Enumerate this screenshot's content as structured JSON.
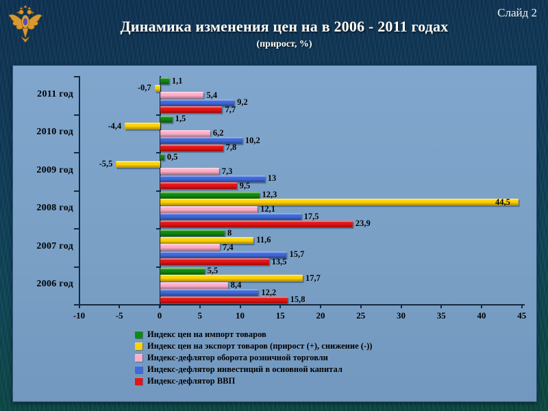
{
  "slide": {
    "slide_number_label": "Слайд 2",
    "title": "Динамика изменения цен на в 2006 - 2011 годах",
    "subtitle": "(прирост, %)",
    "logo_icon": "double-headed-eagle-emblem"
  },
  "colors": {
    "title_text": "#fffdf5",
    "panel_background": "#7aa0c6",
    "axis_line": "#14283e",
    "value_label_text": "#000000",
    "emblem_gold": "#d8992e",
    "emblem_shield": "#5b4fa8"
  },
  "chart_data": {
    "type": "bar",
    "orientation": "horizontal",
    "title": "Динамика изменения цен на в 2006 - 2011 годах (прирост, %)",
    "categories": [
      "2011 год",
      "2010 год",
      "2009 год",
      "2008 год",
      "2007 год",
      "2006 год"
    ],
    "series": [
      {
        "name": "Индекс цен на импорт товаров",
        "color": "#118a11",
        "values": [
          1.1,
          1.5,
          0.5,
          12.3,
          8,
          5.5
        ],
        "labels": [
          "1,1",
          "1,5",
          "0,5",
          "12,3",
          "8",
          "5,5"
        ]
      },
      {
        "name": "Индекс цен на экспорт товаров (прирост (+), снижение (-))",
        "color": "#ffd200",
        "values": [
          -0.7,
          -4.4,
          -5.5,
          44.5,
          11.6,
          17.7
        ],
        "labels": [
          "-0,7",
          "-4,4",
          "-5,5",
          "44,5",
          "11,6",
          "17,7"
        ]
      },
      {
        "name": "Индекс-дефлятор оборота розничной торговли",
        "color": "#ffaec9",
        "values": [
          5.4,
          6.2,
          7.3,
          12.1,
          7.4,
          8.4
        ],
        "labels": [
          "5,4",
          "6,2",
          "7,3",
          "12,1",
          "7,4",
          "8,4"
        ]
      },
      {
        "name": "Индекс-дефлятор инвестиций в основной капитал",
        "color": "#3e6ada",
        "values": [
          9.2,
          10.2,
          13,
          17.5,
          15.7,
          12.2
        ],
        "labels": [
          "9,2",
          "10,2",
          "13",
          "17,5",
          "15,7",
          "12,2"
        ]
      },
      {
        "name": "Индекс-дефлятор ВВП",
        "color": "#e71414",
        "values": [
          7.7,
          7.8,
          9.5,
          23.9,
          13.5,
          15.8
        ],
        "labels": [
          "7,7",
          "7,8",
          "9,5",
          "23,9",
          "13,5",
          "15,8"
        ]
      }
    ],
    "xlim": [
      -10,
      45
    ],
    "xticks": [
      -10,
      -5,
      0,
      5,
      10,
      15,
      20,
      25,
      30,
      35,
      40,
      45
    ],
    "xlabel": "",
    "ylabel": "",
    "grid": false,
    "legend_position": "bottom"
  }
}
